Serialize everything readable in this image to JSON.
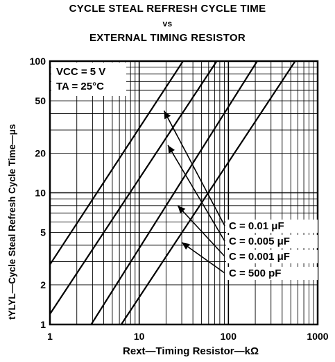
{
  "chart_data": {
    "type": "line",
    "title": "CYCLE STEAL REFRESH CYCLE TIME",
    "title_vs": "vs",
    "subtitle": "EXTERNAL TIMING RESISTOR",
    "xlabel": "Rext—Timing Resistor—kΩ",
    "ylabel": "tYLYL—Cycle Steal Refresh Cycle Time—μs",
    "x_scale": "log",
    "y_scale": "log",
    "xlim": [
      1,
      1000
    ],
    "ylim": [
      1,
      100
    ],
    "x_ticks": [
      "1",
      "10",
      "100",
      "1000"
    ],
    "y_ticks": [
      "1",
      "2",
      "5",
      "10",
      "20",
      "50",
      "100"
    ],
    "grid": true,
    "conditions": [
      "VCC = 5 V",
      "TA = 25°C"
    ],
    "series": [
      {
        "name": "C = 0.01 μF",
        "x": [
          1,
          31
        ],
        "y": [
          2.85,
          100
        ]
      },
      {
        "name": "C = 0.005 μF",
        "x": [
          1,
          74
        ],
        "y": [
          1.2,
          100
        ]
      },
      {
        "name": "C = 0.001 μF",
        "x": [
          2.9,
          210
        ],
        "y": [
          1,
          100
        ]
      },
      {
        "name": "C = 500 pF",
        "x": [
          6.3,
          560
        ],
        "y": [
          1,
          100
        ]
      }
    ],
    "annotations": [
      {
        "label": "C = 0.01 μF",
        "points_to": [
          19,
          42
        ]
      },
      {
        "label": "C = 0.005 μF",
        "points_to": [
          21,
          23
        ]
      },
      {
        "label": "C = 0.001 μF",
        "points_to": [
          27,
          8
        ]
      },
      {
        "label": "C = 500 pF",
        "points_to": [
          30,
          4.2
        ]
      }
    ]
  }
}
